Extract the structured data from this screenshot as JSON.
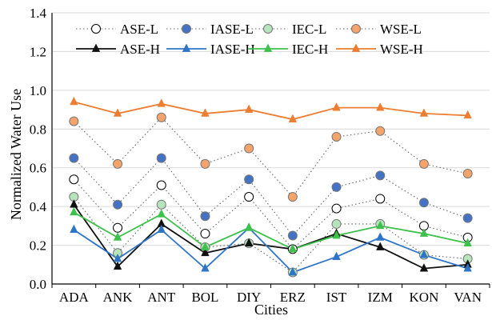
{
  "chart_data": {
    "type": "line",
    "title": "",
    "xlabel": "Cities",
    "ylabel": "Normalized Water Use",
    "ylim": [
      0.0,
      1.4
    ],
    "yticks": [
      "0.0",
      "0.2",
      "0.4",
      "0.6",
      "0.8",
      "1.0",
      "1.2",
      "1.4"
    ],
    "grid": "horizontal",
    "legend_position": "top",
    "categories": [
      "ADA",
      "ANK",
      "ANT",
      "BOL",
      "DIY",
      "ERZ",
      "IST",
      "IZM",
      "KON",
      "VAN"
    ],
    "series": [
      {
        "name": "ASE-L",
        "style": "dotted-circle",
        "color": "#555555",
        "fill": "#ffffff",
        "values": [
          0.54,
          0.29,
          0.51,
          0.26,
          0.45,
          0.18,
          0.39,
          0.44,
          0.3,
          0.24
        ]
      },
      {
        "name": "IASE-L",
        "style": "dotted-circle",
        "color": "#4472c4",
        "fill": "#4472c4",
        "values": [
          0.65,
          0.41,
          0.65,
          0.35,
          0.54,
          0.25,
          0.5,
          0.56,
          0.42,
          0.34
        ]
      },
      {
        "name": "IEC-L",
        "style": "dotted-circle",
        "color": "#7fd08a",
        "fill": "#b7e4bd",
        "values": [
          0.45,
          0.16,
          0.41,
          0.19,
          0.21,
          0.06,
          0.31,
          0.31,
          0.15,
          0.13
        ]
      },
      {
        "name": "WSE-L",
        "style": "dotted-circle",
        "color": "#f4b183",
        "fill": "#f4a46a",
        "values": [
          0.84,
          0.62,
          0.86,
          0.62,
          0.7,
          0.45,
          0.76,
          0.79,
          0.62,
          0.57
        ]
      },
      {
        "name": "ASE-H",
        "style": "solid-triangle",
        "color": "#111111",
        "values": [
          0.41,
          0.09,
          0.31,
          0.16,
          0.21,
          0.18,
          0.26,
          0.19,
          0.08,
          0.1
        ]
      },
      {
        "name": "IASE-H",
        "style": "solid-triangle",
        "color": "#2e75c8",
        "values": [
          0.28,
          0.13,
          0.28,
          0.08,
          0.29,
          0.06,
          0.14,
          0.24,
          0.15,
          0.08
        ]
      },
      {
        "name": "IEC-H",
        "style": "solid-triangle",
        "color": "#3cc24a",
        "values": [
          0.37,
          0.24,
          0.36,
          0.19,
          0.29,
          0.18,
          0.25,
          0.3,
          0.26,
          0.21
        ]
      },
      {
        "name": "WSE-H",
        "style": "solid-triangle",
        "color": "#ed7d31",
        "values": [
          0.94,
          0.88,
          0.93,
          0.88,
          0.9,
          0.85,
          0.91,
          0.91,
          0.88,
          0.87
        ]
      }
    ]
  }
}
